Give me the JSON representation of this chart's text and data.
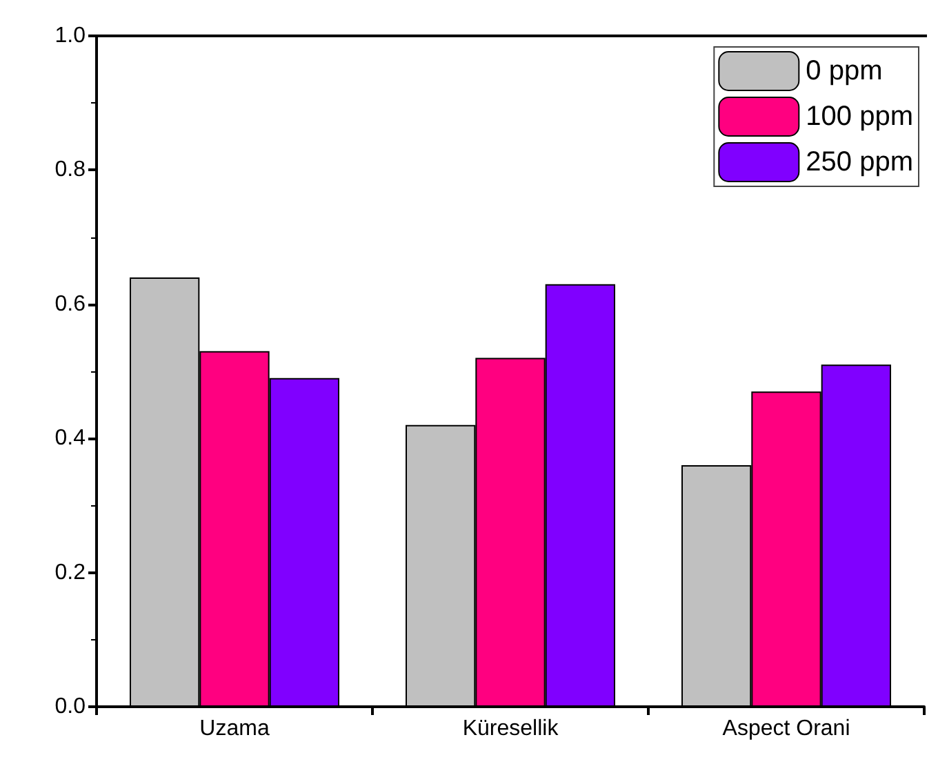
{
  "chart_data": {
    "type": "bar",
    "categories": [
      "Uzama",
      "Küresellik",
      "Aspect Orani"
    ],
    "series": [
      {
        "name": "0 ppm",
        "color": "#c0c0c0",
        "values": [
          0.64,
          0.42,
          0.36
        ]
      },
      {
        "name": "100 ppm",
        "color": "#ff0080",
        "values": [
          0.53,
          0.52,
          0.47
        ]
      },
      {
        "name": "250 ppm",
        "color": "#8000ff",
        "values": [
          0.49,
          0.63,
          0.51
        ]
      }
    ],
    "ylim": [
      0,
      1
    ],
    "yticks": [
      {
        "value": 0,
        "label": "0.0"
      },
      {
        "value": 0.2,
        "label": "0.2"
      },
      {
        "value": 0.4,
        "label": "0.4"
      },
      {
        "value": 0.6,
        "label": "0.6"
      },
      {
        "value": 0.8,
        "label": "0.8"
      },
      {
        "value": 1,
        "label": "1.0"
      }
    ],
    "grid": false,
    "legend": "top right"
  }
}
